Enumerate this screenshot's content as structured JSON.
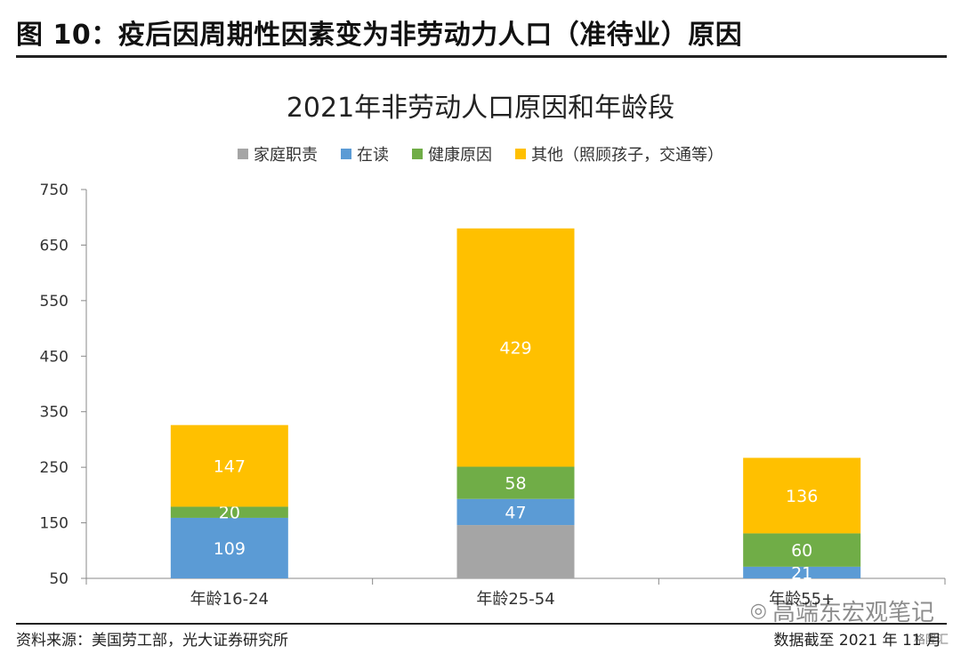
{
  "header": {
    "figure_title": "图 10：疫后因周期性因素变为非劳动力人口（准待业）原因"
  },
  "colors": {
    "domestic": "#a5a5a5",
    "school": "#5b9bd5",
    "health": "#70ad47",
    "other": "#ffc000"
  },
  "chart_data": {
    "type": "bar",
    "stacked": true,
    "title": "2021年非劳动人口原因和年龄段",
    "categories": [
      "年龄16-24",
      "年龄25-54",
      "年龄55+"
    ],
    "ylim": [
      50,
      750
    ],
    "yticks": [
      50,
      150,
      250,
      350,
      450,
      550,
      650,
      750
    ],
    "legend_position": "top-center",
    "series": [
      {
        "name": "家庭职责",
        "key": "domestic",
        "values": [
          0,
          96,
          0
        ],
        "labels": [
          "",
          "",
          ""
        ]
      },
      {
        "name": "在读",
        "key": "school",
        "values": [
          109,
          47,
          21
        ],
        "labels": [
          "109",
          "47",
          "21"
        ]
      },
      {
        "name": "健康原因",
        "key": "health",
        "values": [
          20,
          58,
          60
        ],
        "labels": [
          "20",
          "58",
          "60"
        ]
      },
      {
        "name": "其他（照顾孩子，交通等）",
        "key": "other",
        "values": [
          147,
          429,
          136
        ],
        "labels": [
          "147",
          "429",
          "136"
        ]
      }
    ]
  },
  "footer": {
    "source": "资料来源：美国劳工部，光大证券研究所",
    "note": "数据截至 2021 年 11 月",
    "watermark": "高端东宏观笔记",
    "watermark_small": "格隆汇"
  }
}
